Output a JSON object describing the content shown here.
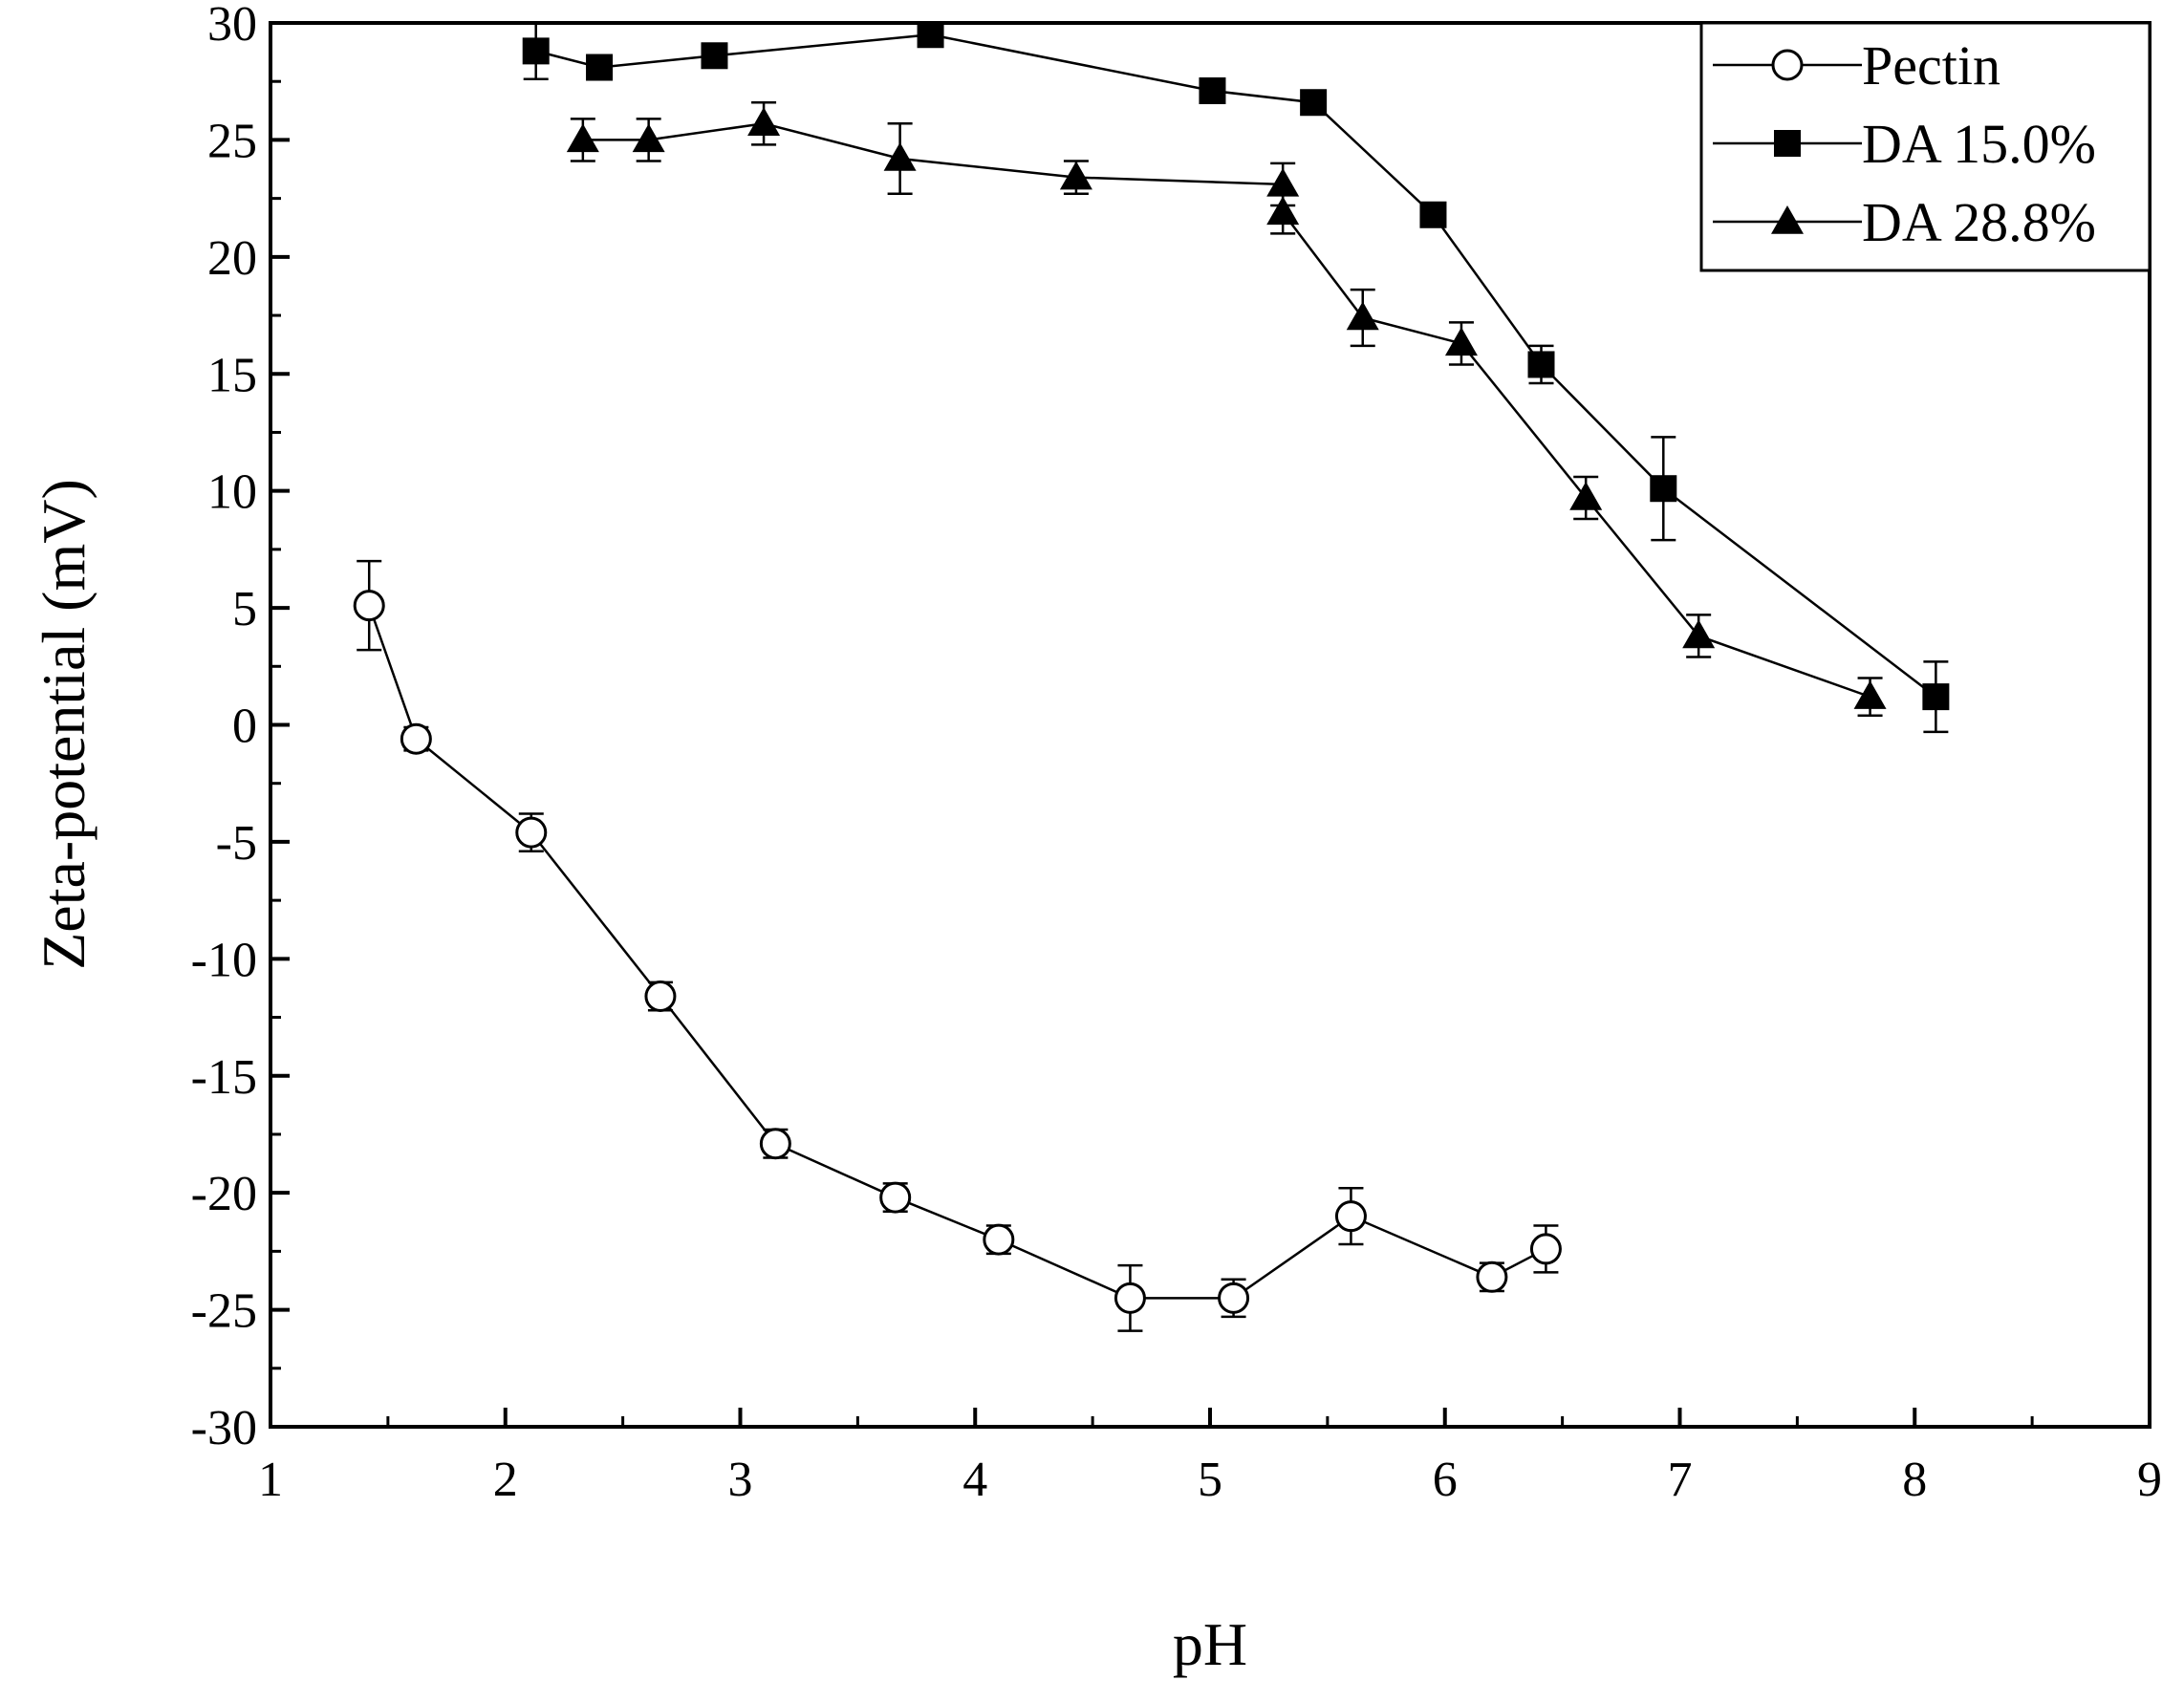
{
  "chart_data": {
    "type": "line",
    "title": "",
    "xlabel": "pH",
    "ylabel": "Zeta-potential (mV)",
    "xlim": [
      1,
      9
    ],
    "ylim": [
      -30,
      30
    ],
    "xticks": [
      1,
      2,
      3,
      4,
      5,
      6,
      7,
      8,
      9
    ],
    "yticks": [
      30,
      25,
      20,
      15,
      10,
      5,
      0,
      -5,
      -10,
      -15,
      -20,
      -25,
      -30
    ],
    "grid": false,
    "legend_position": "top-right",
    "series": [
      {
        "name": "Pectin",
        "marker": "open-circle",
        "x": [
          1.42,
          1.62,
          2.11,
          2.66,
          3.15,
          3.66,
          4.1,
          4.66,
          5.1,
          5.6,
          6.2,
          6.43
        ],
        "y": [
          5.1,
          -0.6,
          -4.6,
          -11.6,
          -17.9,
          -20.2,
          -22.0,
          -24.5,
          -24.5,
          -21.0,
          -23.6,
          -22.4
        ],
        "error": [
          1.9,
          0.5,
          0.8,
          0.6,
          0.6,
          0.6,
          0.6,
          1.4,
          0.8,
          1.2,
          0.6,
          1.0
        ]
      },
      {
        "name": "DA 15.0%",
        "marker": "filled-square",
        "x": [
          2.13,
          2.4,
          2.89,
          3.81,
          5.01,
          5.44,
          5.95,
          6.41,
          6.93,
          8.09
        ],
        "y": [
          28.8,
          28.1,
          28.6,
          29.5,
          27.1,
          26.6,
          21.8,
          15.4,
          10.1,
          1.2
        ],
        "error": [
          1.2,
          0.4,
          0.4,
          0.4,
          0.4,
          0.4,
          0.4,
          0.8,
          2.2,
          1.5
        ]
      },
      {
        "name": "DA 28.8%",
        "marker": "filled-triangle",
        "x": [
          2.33,
          2.61,
          3.1,
          3.68,
          4.43,
          5.31,
          5.31,
          5.65,
          6.07,
          6.6,
          7.08,
          7.81
        ],
        "y": [
          25.0,
          25.0,
          25.7,
          24.2,
          23.4,
          23.1,
          21.9,
          17.4,
          16.3,
          9.7,
          3.8,
          1.2
        ],
        "error": [
          0.9,
          0.9,
          0.9,
          1.5,
          0.7,
          0.9,
          0.9,
          1.2,
          0.9,
          0.9,
          0.9,
          0.8
        ]
      }
    ]
  }
}
